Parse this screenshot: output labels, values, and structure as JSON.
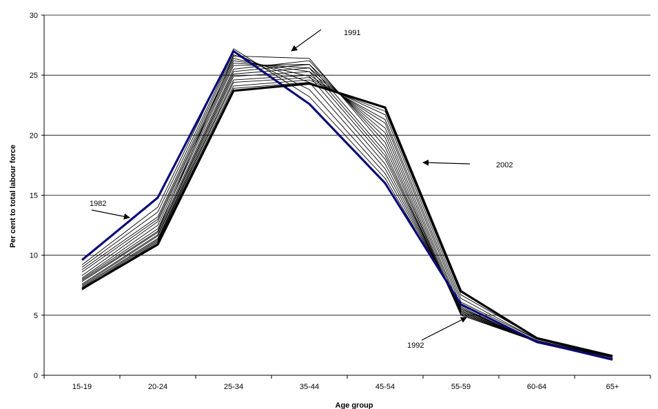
{
  "chart_data": {
    "type": "line",
    "title": "",
    "xlabel": "Age group",
    "ylabel": "Per cent to total labour force",
    "categories": [
      "15-19",
      "20-24",
      "25-34",
      "35-44",
      "45-54",
      "55-59",
      "60-64",
      "65+"
    ],
    "ylim": [
      0,
      30
    ],
    "yticks": [
      0,
      5,
      10,
      15,
      20,
      25,
      30
    ],
    "grid": true,
    "legend": "none",
    "series": [
      {
        "name": "1982",
        "values": [
          9.6,
          14.8,
          27.0,
          22.6,
          16.0,
          5.9,
          2.8,
          1.3
        ],
        "color": "#0a0a78",
        "emphasis": true
      },
      {
        "name": "",
        "values": [
          9.2,
          14.0,
          27.2,
          23.2,
          16.4,
          5.7,
          2.7,
          1.3
        ],
        "color": "#000000"
      },
      {
        "name": "",
        "values": [
          9.0,
          13.6,
          26.9,
          23.8,
          16.8,
          5.6,
          2.8,
          1.3
        ],
        "color": "#000000"
      },
      {
        "name": "",
        "values": [
          8.8,
          13.2,
          26.7,
          24.4,
          17.2,
          5.5,
          2.8,
          1.4
        ],
        "color": "#000000"
      },
      {
        "name": "",
        "values": [
          8.6,
          13.0,
          26.4,
          24.9,
          17.6,
          5.4,
          2.8,
          1.4
        ],
        "color": "#000000"
      },
      {
        "name": "",
        "values": [
          8.3,
          12.8,
          26.2,
          25.3,
          18.0,
          5.3,
          2.8,
          1.4
        ],
        "color": "#000000"
      },
      {
        "name": "",
        "values": [
          8.1,
          12.5,
          26.0,
          25.6,
          18.3,
          5.2,
          2.8,
          1.4
        ],
        "color": "#000000"
      },
      {
        "name": "",
        "values": [
          8.0,
          12.2,
          25.8,
          25.9,
          18.6,
          5.1,
          2.8,
          1.4
        ],
        "color": "#000000"
      },
      {
        "name": "1991",
        "values": [
          7.9,
          12.0,
          26.6,
          26.4,
          19.0,
          5.1,
          2.8,
          1.4
        ],
        "color": "#000000"
      },
      {
        "name": "1992",
        "values": [
          7.8,
          11.9,
          25.5,
          26.2,
          19.4,
          5.0,
          2.8,
          1.4
        ],
        "color": "#000000"
      },
      {
        "name": "",
        "values": [
          7.6,
          11.7,
          25.3,
          25.9,
          19.8,
          5.1,
          2.8,
          1.5
        ],
        "color": "#000000"
      },
      {
        "name": "",
        "values": [
          7.5,
          11.6,
          25.1,
          25.6,
          20.2,
          5.3,
          2.8,
          1.5
        ],
        "color": "#000000"
      },
      {
        "name": "",
        "values": [
          7.4,
          11.4,
          24.9,
          25.3,
          20.6,
          5.5,
          2.9,
          1.5
        ],
        "color": "#000000"
      },
      {
        "name": "",
        "values": [
          7.3,
          11.3,
          24.6,
          25.0,
          21.0,
          5.8,
          2.9,
          1.5
        ],
        "color": "#000000"
      },
      {
        "name": "",
        "values": [
          7.2,
          11.2,
          24.4,
          24.8,
          21.3,
          6.1,
          3.0,
          1.5
        ],
        "color": "#000000"
      },
      {
        "name": "",
        "values": [
          7.1,
          11.1,
          24.1,
          24.6,
          21.7,
          6.4,
          3.0,
          1.6
        ],
        "color": "#000000"
      },
      {
        "name": "",
        "values": [
          7.1,
          11.0,
          23.9,
          24.4,
          22.0,
          6.7,
          3.1,
          1.6
        ],
        "color": "#000000"
      },
      {
        "name": "2002",
        "values": [
          7.2,
          10.9,
          23.7,
          24.3,
          22.3,
          7.0,
          3.1,
          1.6
        ],
        "color": "#000000",
        "emphasis": true
      }
    ],
    "annotations": [
      {
        "text": "1982"
      },
      {
        "text": "1991"
      },
      {
        "text": "2002"
      },
      {
        "text": "1992"
      }
    ]
  }
}
